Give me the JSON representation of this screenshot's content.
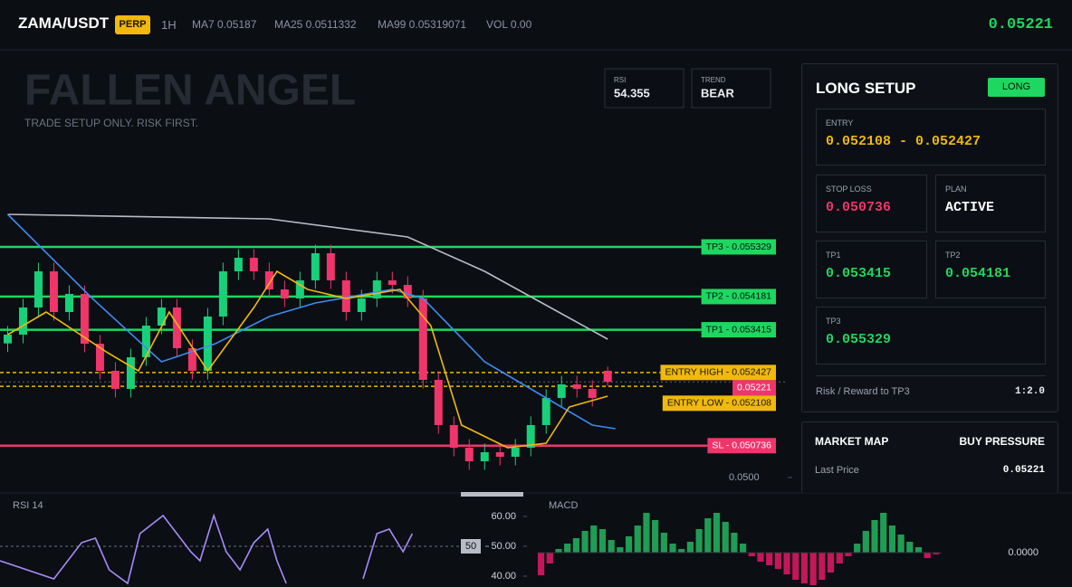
{
  "header": {
    "symbol": "ZAMA/USDT",
    "badge": "PERP",
    "timeframe": "1H",
    "ma7": "MA7 0.05187",
    "ma25": "MA25 0.0511332",
    "ma99": "MA99 0.05319071",
    "vol": "VOL 0.00",
    "price": "0.05221"
  },
  "overlay": {
    "title": "FALLEN ANGEL",
    "subtitle": "TRADE SETUP ONLY. RISK FIRST.",
    "rsi_label": "RSI",
    "rsi_value": "54.355",
    "trend_label": "TREND",
    "trend_value": "BEAR"
  },
  "panel": {
    "title": "LONG SETUP",
    "badge": "LONG",
    "entry_label": "ENTRY",
    "entry_value": "0.052108 - 0.052427",
    "stop_label": "STOP LOSS",
    "stop_value": "0.050736",
    "plan_label": "PLAN",
    "plan_value": "ACTIVE",
    "tp1_label": "TP1",
    "tp1_value": "0.053415",
    "tp2_label": "TP2",
    "tp2_value": "0.054181",
    "tp3_label": "TP3",
    "tp3_value": "0.055329",
    "rr_label": "Risk / Reward to TP3",
    "rr_value": "1:2.0"
  },
  "market_map": {
    "title": "MARKET MAP",
    "status": "BUY PRESSURE",
    "last_label": "Last Price",
    "last_value": "0.05221"
  },
  "chart_data": [
    {
      "type": "candlestick",
      "xlim": [
        -0.5,
        50.7
      ],
      "ylim": [
        0.049644,
        0.059885
      ],
      "yticks": [
        {
          "value": 0.05,
          "label": "0.0500"
        }
      ],
      "up_color": "#19d07a",
      "down_color": "#f0356b",
      "candles": [
        [
          0.0531,
          0.053502,
          0.0529,
          0.053302
        ],
        [
          0.053302,
          0.054129,
          0.053102,
          0.053929
        ],
        [
          0.053929,
          0.054965,
          0.053729,
          0.054765
        ],
        [
          0.054765,
          0.054965,
          0.053624,
          0.053824
        ],
        [
          0.053824,
          0.054442,
          0.053624,
          0.054242
        ],
        [
          0.054242,
          0.054442,
          0.052893,
          0.053093
        ],
        [
          0.053093,
          0.053293,
          0.052266,
          0.052466
        ],
        [
          0.052466,
          0.052666,
          0.051848,
          0.052048
        ],
        [
          0.052048,
          0.052979,
          0.051848,
          0.052779
        ],
        [
          0.052779,
          0.053711,
          0.052579,
          0.053511
        ],
        [
          0.053511,
          0.054129,
          0.053311,
          0.053929
        ],
        [
          0.053929,
          0.054129,
          0.052788,
          0.052988
        ],
        [
          0.052988,
          0.053188,
          0.052266,
          0.052466
        ],
        [
          0.052466,
          0.05392,
          0.052266,
          0.05372
        ],
        [
          0.05372,
          0.054965,
          0.05352,
          0.054765
        ],
        [
          0.054765,
          0.055278,
          0.054565,
          0.055078
        ],
        [
          0.055078,
          0.055278,
          0.054565,
          0.054765
        ],
        [
          0.054765,
          0.054965,
          0.054147,
          0.054347
        ],
        [
          0.054347,
          0.054547,
          0.053938,
          0.054138
        ],
        [
          0.054138,
          0.054756,
          0.053938,
          0.054556
        ],
        [
          0.054556,
          0.055383,
          0.054356,
          0.055183
        ],
        [
          0.055183,
          0.055383,
          0.054356,
          0.054556
        ],
        [
          0.054556,
          0.054756,
          0.053624,
          0.053824
        ],
        [
          0.053824,
          0.054338,
          0.053624,
          0.054138
        ],
        [
          0.054138,
          0.054756,
          0.053938,
          0.054556
        ],
        [
          0.054556,
          0.054756,
          0.054251,
          0.054451
        ],
        [
          0.054451,
          0.054651,
          0.053938,
          0.054138
        ],
        [
          0.054138,
          0.054338,
          0.052057,
          0.052257
        ],
        [
          0.052257,
          0.052457,
          0.051012,
          0.051212
        ],
        [
          0.051212,
          0.051412,
          0.050489,
          0.050689
        ],
        [
          0.050689,
          0.050889,
          0.050176,
          0.050376
        ],
        [
          0.050376,
          0.050785,
          0.050176,
          0.050585
        ],
        [
          0.050585,
          0.050785,
          0.05028,
          0.05048
        ],
        [
          0.05048,
          0.050889,
          0.05028,
          0.050689
        ],
        [
          0.050689,
          0.051412,
          0.050489,
          0.051212
        ],
        [
          0.051212,
          0.052039,
          0.051012,
          0.051839
        ],
        [
          0.051839,
          0.052352,
          0.051639,
          0.052152
        ],
        [
          0.052152,
          0.052352,
          0.051848,
          0.052048
        ],
        [
          0.052048,
          0.052248,
          0.051639,
          0.051839
        ],
        [
          0.052466,
          0.052566,
          0.05211,
          0.05221
        ]
      ],
      "series": [
        {
          "color": "#b9bcc2",
          "x": [
            0,
            17,
            26,
            31,
            39
          ],
          "values": [
            0.056081,
            0.055977,
            0.055559,
            0.054765,
            0.053197
          ]
        },
        {
          "color": "#3d8bf2",
          "x": [
            0,
            5.5,
            10,
            13.5,
            17,
            20,
            25,
            27,
            31,
            35,
            38,
            39.5
          ],
          "values": [
            0.056081,
            0.054138,
            0.052675,
            0.053093,
            0.05372,
            0.054033,
            0.054347,
            0.054138,
            0.052675,
            0.051839,
            0.051212,
            0.051128
          ]
        },
        {
          "color": "#f0b90b",
          "x": [
            0,
            2.5,
            6.5,
            8.5,
            10.5,
            13,
            16,
            17.5,
            19.5,
            22,
            25.5,
            27.5,
            29.5,
            32.5,
            35,
            36.5,
            39
          ],
          "values": [
            0.053302,
            0.053824,
            0.052884,
            0.052466,
            0.053824,
            0.052466,
            0.053929,
            0.054765,
            0.054347,
            0.054138,
            0.054347,
            0.053511,
            0.051212,
            0.050689,
            0.050794,
            0.05163,
            0.05188
          ]
        }
      ],
      "levels": [
        {
          "text": "TP3 - 0.055329",
          "value": 0.055329,
          "color": "#1ed760",
          "text_color": "#06140b",
          "style": "solid"
        },
        {
          "text": "TP2 - 0.054181",
          "value": 0.054181,
          "color": "#1ed760",
          "text_color": "#06140b",
          "style": "solid"
        },
        {
          "text": "TP1 - 0.053415",
          "value": 0.053415,
          "color": "#1ed760",
          "text_color": "#06140b",
          "style": "solid"
        },
        {
          "text": "ENTRY HIGH - 0.052427",
          "value": 0.052427,
          "color": "#f0b90b",
          "text_color": "#1a1400",
          "style": "dashed"
        },
        {
          "text": "0.05221",
          "value": 0.05221,
          "color": "#f0356b",
          "text_color": "#ffffff",
          "style": "faint"
        },
        {
          "text": "ENTRY LOW - 0.052108",
          "value": 0.052108,
          "color": "#f0b90b",
          "text_color": "#1a1400",
          "style": "dashed"
        },
        {
          "text": "SL - 0.050736",
          "value": 0.050736,
          "color": "#f0356b",
          "text_color": "#ffffff",
          "style": "solid"
        }
      ]
    },
    {
      "type": "line",
      "title": "RSI 14",
      "xlim": [
        -0.5,
        50.7
      ],
      "ylim": [
        36.36,
        67.88
      ],
      "yticks": [
        {
          "value": 60,
          "label": "60.00"
        },
        {
          "value": 50,
          "label": "50.00"
        },
        {
          "value": 40,
          "label": "40.00"
        }
      ],
      "reference": {
        "value": 50,
        "label": "50"
      },
      "series": [
        {
          "color": "#a78bfa",
          "x": [
            -0.5,
            3,
            4.8,
            5.7,
            6.6,
            7.8,
            8.6,
            10.1,
            11,
            11.9,
            12.5,
            13.4,
            14.2,
            15.1,
            16,
            16.9,
            17.5,
            18.1,
            20.5,
            23.1,
            24,
            24.8,
            25.7,
            26.3
          ],
          "values": [
            45.15,
            39.09,
            51.21,
            52.73,
            42.12,
            37.58,
            54.24,
            60.3,
            54.24,
            48.18,
            45.15,
            60.3,
            48.18,
            42.12,
            51.21,
            55.76,
            45.15,
            37.58,
            null,
            39.09,
            54.24,
            55.76,
            48.18,
            54.24
          ]
        }
      ]
    },
    {
      "type": "bar",
      "title": "MACD",
      "ylim": [
        -3.8e-05,
        4.6e-05
      ],
      "yticks": [
        {
          "value": 0,
          "label": "0.0000"
        }
      ],
      "up_color": "#1f9d55",
      "down_color": "#c2185b",
      "values": [
        -2.5e-05,
        -1.2e-05,
        4e-06,
        1e-05,
        1.6e-05,
        2.4e-05,
        3e-05,
        2.6e-05,
        1.4e-05,
        6e-06,
        1.8e-05,
        3e-05,
        4.4e-05,
        3.6e-05,
        2.2e-05,
        1e-05,
        4e-06,
        1.2e-05,
        2.6e-05,
        3.8e-05,
        4.4e-05,
        3.4e-05,
        2.2e-05,
        1e-05,
        -4e-06,
        -1e-05,
        -1.4e-05,
        -1.8e-05,
        -2.4e-05,
        -3e-05,
        -3.4e-05,
        -3.6e-05,
        -3e-05,
        -2.2e-05,
        -1.2e-05,
        -4e-06,
        1e-05,
        2.4e-05,
        3.6e-05,
        4.4e-05,
        3e-05,
        2e-05,
        1.2e-05,
        6e-06,
        -6e-06,
        -2e-06
      ]
    }
  ]
}
